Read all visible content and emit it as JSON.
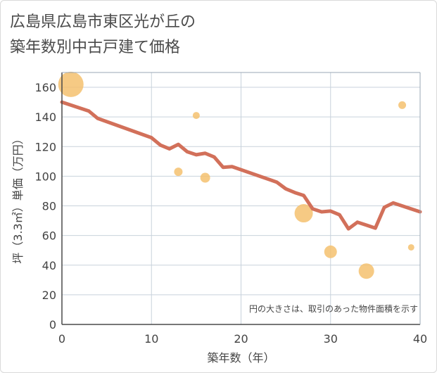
{
  "chart_data": {
    "type": "scatter+line",
    "title_lines": [
      "広島県広島市東区光が丘の",
      "築年数別中古戸建て価格"
    ],
    "xlabel": "築年数（年）",
    "ylabel": "坪（3.3㎡）単価（万円）",
    "xlim": [
      0,
      40
    ],
    "ylim": [
      0,
      170
    ],
    "xticks": [
      0,
      10,
      20,
      30,
      40
    ],
    "yticks": [
      0,
      20,
      40,
      60,
      80,
      100,
      120,
      140,
      160
    ],
    "note": "円の大きさは、取引のあった物件面積を示す",
    "colors": {
      "line": "#d2705a",
      "bubble": "#f5c16e",
      "grid": "#c8d2dc",
      "axis": "#4a4a4a"
    },
    "trend_line": {
      "x": [
        0,
        3,
        4,
        10,
        11,
        12,
        13,
        14,
        15,
        16,
        17,
        18,
        19,
        24,
        25,
        26,
        27,
        28,
        29,
        30,
        31,
        32,
        33,
        34,
        35,
        36,
        37,
        40
      ],
      "y": [
        150,
        144,
        139,
        126,
        121,
        118.5,
        121.5,
        116.5,
        114.5,
        115.5,
        113,
        106,
        106.5,
        96,
        91.5,
        89,
        87,
        78,
        76,
        76.5,
        74,
        64.5,
        69,
        67,
        65,
        79,
        82,
        76
      ]
    },
    "bubbles": [
      {
        "x": 1,
        "y": 162,
        "size": 18
      },
      {
        "x": 15,
        "y": 141,
        "size": 5
      },
      {
        "x": 13,
        "y": 103,
        "size": 6
      },
      {
        "x": 16,
        "y": 99,
        "size": 7
      },
      {
        "x": 27,
        "y": 75,
        "size": 13
      },
      {
        "x": 30,
        "y": 49,
        "size": 9
      },
      {
        "x": 34,
        "y": 36,
        "size": 11
      },
      {
        "x": 38,
        "y": 148,
        "size": 5.5
      },
      {
        "x": 39,
        "y": 52,
        "size": 4.5
      }
    ]
  }
}
